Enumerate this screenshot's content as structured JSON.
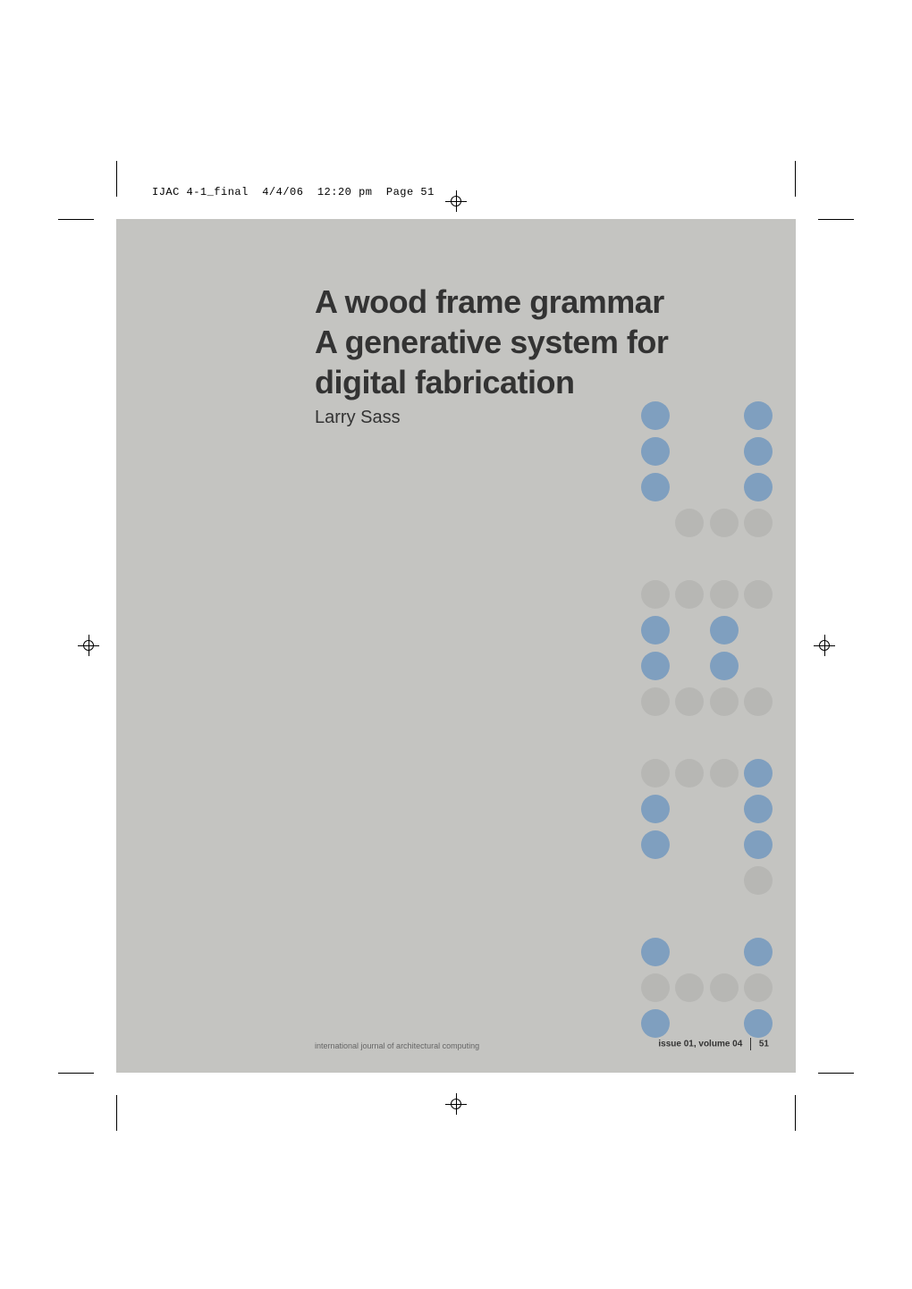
{
  "header": {
    "filename": "IJAC 4-1_final",
    "date": "4/4/06",
    "time": "12:20 pm",
    "page_label": "Page 51"
  },
  "article": {
    "title_line1": "A wood frame grammar",
    "title_line2": "A generative system for",
    "title_line3": "digital fabrication",
    "author": "Larry Sass"
  },
  "footer": {
    "journal": "international journal of architectural computing",
    "issue": "issue 01, volume 04",
    "page_number": "51"
  },
  "colors": {
    "page_bg": "#ffffff",
    "box_bg": "#c4c4c1",
    "text": "#333333",
    "dot_blue": "#7f9fbf",
    "dot_gray": "#b7b7b4"
  },
  "dot_glyphs": [
    {
      "type": "J",
      "rows": [
        [
          null,
          null,
          null,
          "b",
          null,
          null,
          "b"
        ],
        [
          null,
          null,
          null,
          "b",
          null,
          null,
          "b"
        ],
        [
          null,
          null,
          null,
          "b",
          null,
          null,
          "b"
        ],
        [
          null,
          null,
          null,
          null,
          "g",
          "g",
          "g"
        ]
      ]
    },
    {
      "type": "A-top",
      "rows": [
        [
          null,
          null,
          null,
          "g",
          "g",
          "g",
          "g"
        ],
        [
          null,
          null,
          null,
          "b",
          null,
          "b",
          null
        ],
        [
          null,
          null,
          null,
          "b",
          null,
          "b",
          null
        ],
        [
          null,
          null,
          null,
          "g",
          "g",
          "g",
          "g"
        ]
      ]
    },
    {
      "type": "C",
      "rows": [
        [
          null,
          null,
          null,
          "g",
          "g",
          "g",
          "b"
        ],
        [
          null,
          null,
          null,
          "b",
          null,
          null,
          "b"
        ],
        [
          null,
          null,
          null,
          "b",
          null,
          null,
          "b"
        ],
        [
          null,
          null,
          null,
          null,
          null,
          null,
          "g"
        ]
      ]
    },
    {
      "type": "bottom",
      "rows": [
        [
          null,
          null,
          null,
          "b",
          null,
          null,
          "b"
        ],
        [
          null,
          null,
          null,
          "g",
          "g",
          "g",
          "g"
        ],
        [
          null,
          null,
          null,
          "b",
          null,
          null,
          "b"
        ]
      ]
    }
  ]
}
